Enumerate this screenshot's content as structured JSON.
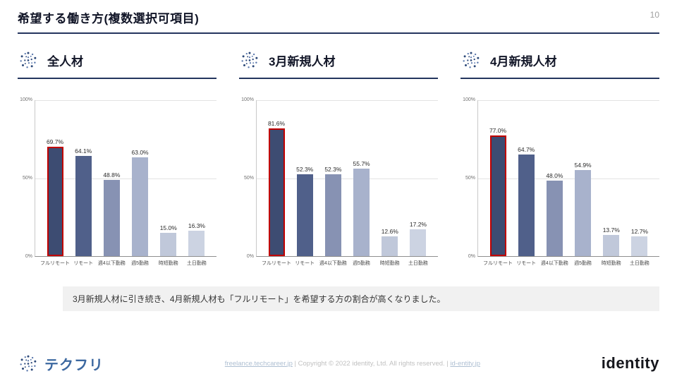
{
  "page": {
    "title": "希望する働き方(複数選択可項目)",
    "page_number": "10"
  },
  "sections": [
    {
      "label": "全人材"
    },
    {
      "label": "3月新規人材"
    },
    {
      "label": "4月新規人材"
    }
  ],
  "chart_data": [
    {
      "type": "bar",
      "title": "全人材",
      "categories": [
        "フルリモート",
        "リモート",
        "週4以下勤務",
        "週5勤務",
        "時短勤務",
        "土日勤務"
      ],
      "values": [
        69.7,
        64.1,
        48.8,
        63.0,
        15.0,
        16.3
      ],
      "ylim": [
        0,
        100
      ],
      "yticks": [
        "0%",
        "50%",
        "100%"
      ],
      "highlight_index": 0,
      "legend": "none",
      "grid": "horizontal"
    },
    {
      "type": "bar",
      "title": "3月新規人材",
      "categories": [
        "フルリモート",
        "リモート",
        "週4以下勤務",
        "週5勤務",
        "時短勤務",
        "土日勤務"
      ],
      "values": [
        81.6,
        52.3,
        52.3,
        55.7,
        12.6,
        17.2
      ],
      "ylim": [
        0,
        100
      ],
      "yticks": [
        "0%",
        "50%",
        "100%"
      ],
      "highlight_index": 0,
      "legend": "none",
      "grid": "horizontal"
    },
    {
      "type": "bar",
      "title": "4月新規人材",
      "categories": [
        "フルリモート",
        "リモート",
        "週4以下勤務",
        "週5勤務",
        "時短勤務",
        "土日勤務"
      ],
      "values": [
        77.0,
        64.7,
        48.0,
        54.9,
        13.7,
        12.7
      ],
      "ylim": [
        0,
        100
      ],
      "yticks": [
        "0%",
        "50%",
        "100%"
      ],
      "highlight_index": 0,
      "legend": "none",
      "grid": "horizontal"
    }
  ],
  "colors": {
    "bar_colors": [
      "#3d4c72",
      "#50608a",
      "#8792b3",
      "#a8b2cc",
      "#c0c8da",
      "#ccd3e2"
    ],
    "highlight_border": "#c00000",
    "accent_line": "#24355e"
  },
  "note": "3月新規人材に引き続き、4月新規人材も「フルリモート」を希望する方の割合が高くなりました。",
  "footer": {
    "logo_text": "テクフリ",
    "link1": "freelance.techcareer.jp",
    "separator": "  |  ",
    "copyright": "Copyright © 2022 identity, Ltd. All rights reserved.",
    "link2": "id-entity.jp",
    "brand": "identity"
  }
}
